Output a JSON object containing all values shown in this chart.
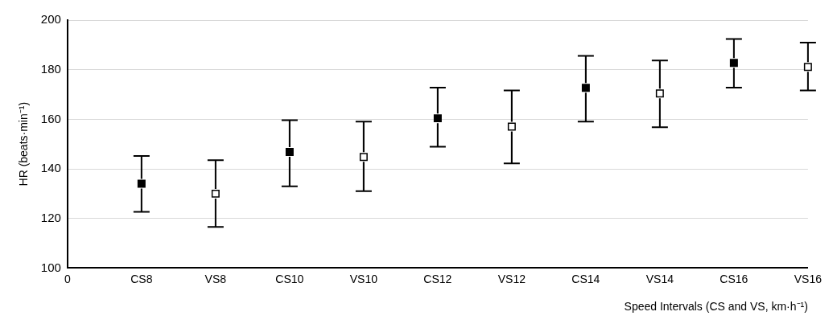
{
  "chart_data": {
    "type": "scatter",
    "xlabel": "Speed Intervals (CS and VS, km·h⁻¹)",
    "ylabel": "HR (beats·min⁻¹)",
    "categories": [
      "0",
      "CS8",
      "VS8",
      "CS10",
      "VS10",
      "CS12",
      "VS12",
      "CS14",
      "VS14",
      "CS16",
      "VS16"
    ],
    "series": [
      {
        "color": "#000000",
        "values": [
          null,
          134,
          null,
          146.8,
          null,
          160.4,
          null,
          172.7,
          null,
          182.7,
          null
        ],
        "errors": [
          null,
          [
            122.7,
            145.2
          ],
          null,
          [
            133,
            159.6
          ],
          null,
          [
            148.9,
            172.8
          ],
          null,
          [
            159.1,
            185.6
          ],
          null,
          [
            172.8,
            192.4
          ],
          null
        ]
      },
      {
        "color": "#ffffff",
        "values": [
          null,
          null,
          130,
          null,
          144.8,
          null,
          157,
          null,
          170.4,
          null,
          181.1
        ],
        "errors": [
          null,
          null,
          [
            116.6,
            143.5
          ],
          null,
          [
            131,
            159.1
          ],
          null,
          [
            142.2,
            171.6
          ],
          null,
          [
            156.8,
            183.7
          ],
          null,
          [
            171.6,
            190.9
          ]
        ]
      }
    ],
    "ylim": [
      100,
      200
    ],
    "yticks": [
      100,
      120,
      140,
      160,
      180,
      200
    ],
    "grid": "y",
    "marker": "square",
    "legend": false
  }
}
